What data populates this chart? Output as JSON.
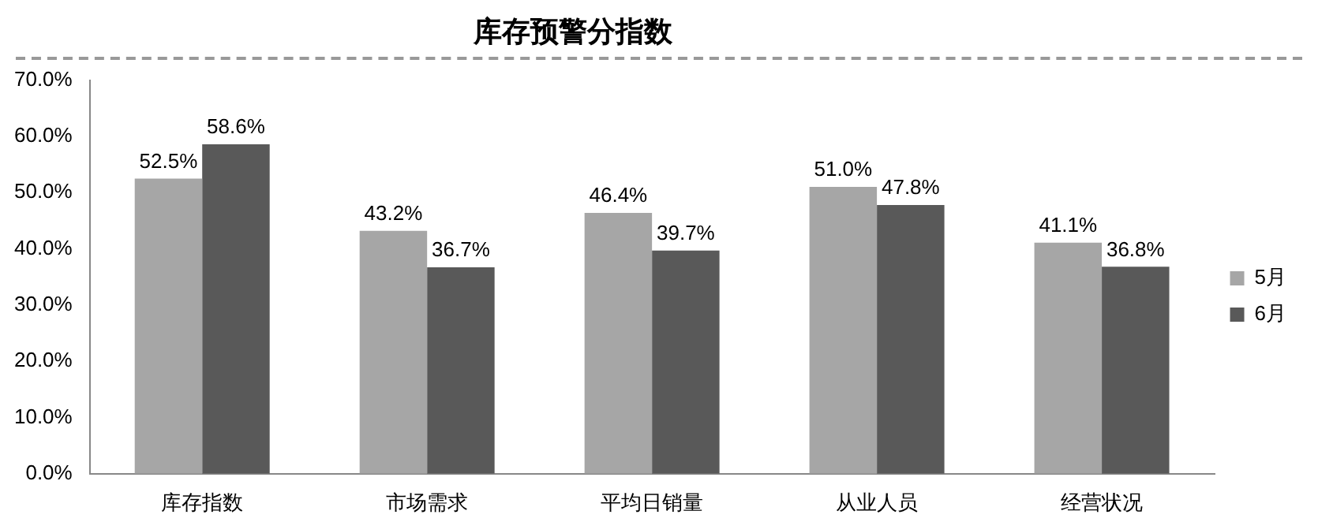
{
  "chart_data": {
    "type": "bar",
    "title": "库存预警分指数",
    "categories": [
      "库存指数",
      "市场需求",
      "平均日销量",
      "从业人员",
      "经营状况"
    ],
    "series": [
      {
        "name": "5月",
        "color": "#a6a6a6",
        "values": [
          52.5,
          43.2,
          46.4,
          51.0,
          41.1
        ],
        "value_labels": [
          "52.5%",
          "43.2%",
          "46.4%",
          "51.0%",
          "41.1%"
        ]
      },
      {
        "name": "6月",
        "color": "#595959",
        "values": [
          58.6,
          36.7,
          39.7,
          47.8,
          36.8
        ],
        "value_labels": [
          "58.6%",
          "36.7%",
          "39.7%",
          "47.8%",
          "36.8%"
        ]
      }
    ],
    "ylim": [
      0,
      70
    ],
    "yticks": [
      {
        "value": 0,
        "label": "0.0%"
      },
      {
        "value": 10,
        "label": "10.0%"
      },
      {
        "value": 20,
        "label": "20.0%"
      },
      {
        "value": 30,
        "label": "30.0%"
      },
      {
        "value": 40,
        "label": "40.0%"
      },
      {
        "value": 50,
        "label": "50.0%"
      },
      {
        "value": 60,
        "label": "60.0%"
      },
      {
        "value": 70,
        "label": "70.0%"
      }
    ],
    "grid": false,
    "legend": "right"
  }
}
